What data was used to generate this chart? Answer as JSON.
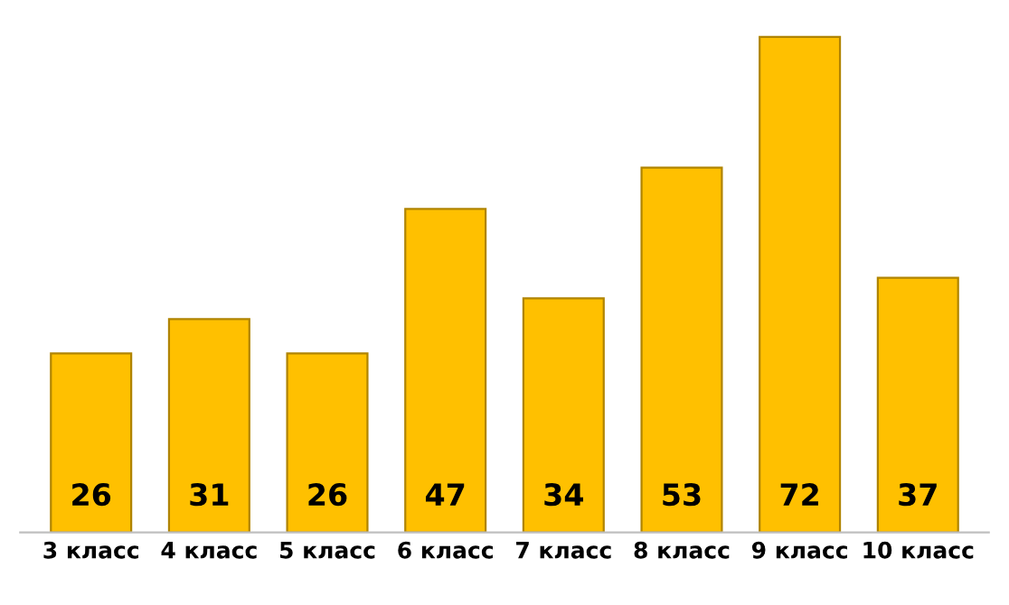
{
  "chart_data": {
    "type": "bar",
    "categories": [
      "3 класс",
      "4 класс",
      "5 класс",
      "6 класс",
      "7 класс",
      "8 класс",
      "9 класс",
      "10 класс"
    ],
    "values": [
      26,
      31,
      26,
      47,
      34,
      53,
      72,
      37
    ],
    "color": "#ffc000",
    "data_labels": true,
    "grid": false,
    "legend": false
  }
}
